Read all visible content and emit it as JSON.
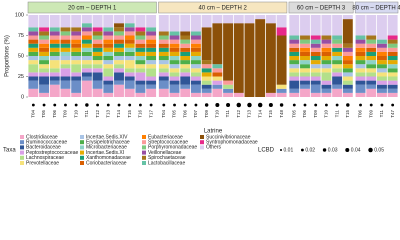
{
  "chart_data": {
    "type": "bar",
    "stacked": true,
    "ylabel": "Proportions (%)",
    "xlabel": "Latrine",
    "legend_title": "Taxa",
    "ylim": [
      0,
      100
    ],
    "yticks": [
      0,
      25,
      50,
      75,
      100
    ],
    "groups": [
      {
        "name": "20 cm – DEPTH 1",
        "color": "#cde8b5",
        "categories": [
          "T04",
          "T05",
          "T06",
          "T09",
          "T10",
          "T11",
          "T12",
          "T13",
          "T14",
          "T15",
          "T16",
          "T17"
        ]
      },
      {
        "name": "40 cm – DEPTH 2",
        "color": "#f6e6c0",
        "categories": [
          "T04",
          "T05",
          "T06",
          "T07",
          "T09",
          "T10",
          "T11",
          "T12",
          "T13",
          "T14",
          "T15",
          "T48"
        ]
      },
      {
        "name": "60 cm – DEPTH 3",
        "color": "#dcdcdc",
        "categories": [
          "T05",
          "T06",
          "T09",
          "T10",
          "T11",
          "T15"
        ]
      },
      {
        "name": "80 cm – DEPTH 4",
        "color": "#d6d9f0",
        "categories": [
          "T06",
          "T09",
          "T11",
          "T47"
        ]
      }
    ],
    "series": [
      {
        "name": "Clostridiaceae",
        "color": "#f4a6c8",
        "values": [
          10,
          5,
          15,
          10,
          5,
          20,
          10,
          5,
          15,
          10,
          5,
          10,
          10,
          5,
          10,
          5,
          5,
          10,
          5,
          5,
          0,
          0,
          5,
          5,
          5,
          10,
          5,
          5,
          10,
          5,
          5,
          10,
          5,
          5
        ]
      },
      {
        "name": "Ruminococcaceae",
        "color": "#6b8ec7",
        "values": [
          10,
          10,
          5,
          10,
          15,
          5,
          10,
          10,
          5,
          10,
          10,
          5,
          10,
          10,
          5,
          10,
          5,
          5,
          5,
          0,
          0,
          0,
          0,
          5,
          5,
          5,
          10,
          5,
          5,
          5,
          10,
          5,
          5,
          5
        ]
      },
      {
        "name": "Bacteroidaceae",
        "color": "#2f5597",
        "values": [
          5,
          10,
          5,
          5,
          5,
          5,
          10,
          5,
          10,
          5,
          5,
          5,
          5,
          5,
          10,
          5,
          5,
          0,
          0,
          0,
          0,
          0,
          0,
          0,
          10,
          5,
          5,
          5,
          10,
          5,
          5,
          5,
          5,
          5
        ]
      },
      {
        "name": "Peptostreptococcaceae",
        "color": "#d9a0e6",
        "values": [
          5,
          5,
          5,
          10,
          5,
          5,
          5,
          5,
          5,
          5,
          10,
          5,
          5,
          5,
          5,
          5,
          0,
          5,
          0,
          0,
          0,
          0,
          0,
          0,
          5,
          5,
          5,
          5,
          5,
          0,
          5,
          5,
          5,
          5
        ]
      },
      {
        "name": "Lachnospiraceae",
        "color": "#b3e08a",
        "values": [
          10,
          5,
          5,
          5,
          10,
          5,
          5,
          10,
          5,
          5,
          5,
          10,
          5,
          5,
          5,
          5,
          5,
          0,
          5,
          0,
          0,
          0,
          0,
          0,
          5,
          5,
          5,
          10,
          5,
          5,
          5,
          5,
          5,
          5
        ]
      },
      {
        "name": "Prevotellaceae",
        "color": "#f6e27a",
        "values": [
          5,
          5,
          10,
          5,
          5,
          5,
          5,
          5,
          5,
          10,
          5,
          5,
          5,
          5,
          5,
          5,
          5,
          5,
          0,
          0,
          0,
          0,
          0,
          5,
          5,
          5,
          5,
          5,
          5,
          5,
          5,
          5,
          5,
          5
        ]
      },
      {
        "name": "Incertae.Sedis.XIV",
        "color": "#a9c4e6",
        "values": [
          5,
          0,
          5,
          5,
          5,
          5,
          0,
          5,
          5,
          5,
          0,
          5,
          5,
          5,
          0,
          5,
          0,
          0,
          0,
          0,
          0,
          0,
          0,
          0,
          5,
          0,
          5,
          5,
          0,
          5,
          5,
          0,
          5,
          0
        ]
      },
      {
        "name": "Erysipelotrichaceae",
        "color": "#4daf4a",
        "values": [
          5,
          5,
          5,
          0,
          5,
          5,
          5,
          5,
          5,
          5,
          5,
          5,
          5,
          5,
          5,
          5,
          0,
          0,
          0,
          0,
          0,
          0,
          0,
          0,
          5,
          5,
          0,
          5,
          5,
          5,
          5,
          5,
          5,
          5
        ]
      },
      {
        "name": "Microbacteriaceae",
        "color": "#8dd3c7",
        "values": [
          0,
          5,
          0,
          5,
          0,
          5,
          0,
          5,
          0,
          5,
          5,
          0,
          0,
          5,
          0,
          5,
          0,
          0,
          0,
          0,
          0,
          0,
          0,
          0,
          0,
          5,
          0,
          0,
          5,
          0,
          0,
          5,
          0,
          5
        ]
      },
      {
        "name": "Incertae.Sedis.XI",
        "color": "#e6ab02",
        "values": [
          5,
          5,
          5,
          5,
          5,
          5,
          5,
          5,
          5,
          5,
          5,
          5,
          5,
          5,
          5,
          5,
          5,
          0,
          0,
          0,
          0,
          0,
          0,
          0,
          5,
          5,
          5,
          5,
          5,
          5,
          5,
          5,
          5,
          5
        ]
      },
      {
        "name": "Xanthomonadaceae",
        "color": "#1b9e77",
        "values": [
          5,
          0,
          5,
          5,
          0,
          5,
          5,
          0,
          5,
          0,
          5,
          5,
          5,
          0,
          5,
          0,
          5,
          0,
          0,
          0,
          0,
          0,
          0,
          0,
          5,
          0,
          5,
          0,
          5,
          0,
          0,
          5,
          0,
          5
        ]
      },
      {
        "name": "Coriobacteriaceae",
        "color": "#d95f02",
        "values": [
          5,
          5,
          0,
          5,
          5,
          0,
          5,
          5,
          5,
          5,
          5,
          5,
          5,
          5,
          5,
          5,
          0,
          5,
          0,
          0,
          0,
          0,
          0,
          0,
          5,
          5,
          5,
          5,
          0,
          5,
          5,
          5,
          5,
          5
        ]
      },
      {
        "name": "Eubacteriaceae",
        "color": "#ff7f00",
        "values": [
          0,
          5,
          5,
          0,
          5,
          5,
          0,
          5,
          0,
          5,
          0,
          5,
          0,
          5,
          0,
          5,
          0,
          0,
          0,
          0,
          0,
          0,
          0,
          0,
          0,
          5,
          0,
          5,
          0,
          5,
          5,
          0,
          5,
          0
        ]
      },
      {
        "name": "Streptococcaceae",
        "color": "#fb9a99",
        "values": [
          5,
          5,
          5,
          5,
          5,
          5,
          5,
          5,
          5,
          5,
          5,
          5,
          5,
          5,
          5,
          5,
          5,
          5,
          5,
          0,
          0,
          0,
          0,
          0,
          5,
          5,
          5,
          5,
          5,
          5,
          5,
          5,
          5,
          5
        ]
      },
      {
        "name": "Porphyromonadaceae",
        "color": "#7fc97f",
        "values": [
          0,
          5,
          0,
          5,
          0,
          0,
          5,
          0,
          5,
          0,
          5,
          0,
          5,
          0,
          5,
          0,
          0,
          0,
          0,
          0,
          0,
          0,
          0,
          0,
          0,
          5,
          0,
          0,
          5,
          0,
          0,
          5,
          0,
          5
        ]
      },
      {
        "name": "Veillonellaceae",
        "color": "#984ea3",
        "values": [
          5,
          0,
          5,
          0,
          5,
          5,
          0,
          5,
          0,
          5,
          0,
          5,
          0,
          5,
          0,
          5,
          0,
          0,
          0,
          0,
          0,
          0,
          0,
          0,
          5,
          0,
          5,
          5,
          0,
          5,
          5,
          0,
          5,
          0
        ]
      },
      {
        "name": "Spirochaetaceae",
        "color": "#a6761d",
        "values": [
          0,
          5,
          0,
          5,
          5,
          0,
          5,
          0,
          5,
          0,
          5,
          0,
          5,
          0,
          5,
          0,
          5,
          0,
          0,
          0,
          0,
          0,
          0,
          0,
          0,
          5,
          0,
          5,
          0,
          5,
          0,
          5,
          0,
          5
        ]
      },
      {
        "name": "Lactobacillaceae",
        "color": "#66c2a5",
        "values": [
          5,
          0,
          5,
          0,
          0,
          5,
          0,
          5,
          0,
          5,
          0,
          5,
          0,
          5,
          0,
          5,
          0,
          5,
          0,
          0,
          0,
          0,
          0,
          0,
          5,
          0,
          5,
          0,
          5,
          0,
          5,
          0,
          5,
          0
        ]
      },
      {
        "name": "Succinivibrionaceae",
        "color": "#8c510a",
        "values": [
          0,
          0,
          0,
          0,
          0,
          0,
          0,
          0,
          5,
          0,
          0,
          0,
          0,
          0,
          5,
          0,
          40,
          50,
          70,
          85,
          90,
          95,
          85,
          60,
          0,
          0,
          0,
          0,
          0,
          30,
          0,
          0,
          0,
          0
        ]
      },
      {
        "name": "Syntrophomonadaceae",
        "color": "#e7298a",
        "values": [
          0,
          5,
          0,
          0,
          0,
          0,
          5,
          0,
          0,
          0,
          5,
          0,
          0,
          0,
          0,
          0,
          0,
          0,
          0,
          0,
          0,
          0,
          0,
          10,
          0,
          0,
          5,
          0,
          0,
          0,
          0,
          0,
          0,
          5
        ]
      },
      {
        "name": "Others",
        "color": "#dccdef",
        "values": [
          15,
          15,
          15,
          15,
          15,
          10,
          15,
          15,
          10,
          10,
          15,
          15,
          20,
          20,
          20,
          20,
          15,
          10,
          10,
          10,
          10,
          5,
          10,
          15,
          25,
          25,
          25,
          25,
          25,
          5,
          25,
          25,
          30,
          25
        ]
      }
    ],
    "lcbd": {
      "name": "LCBD",
      "color": "#000000",
      "ticks": [
        0.01,
        0.02,
        0.03,
        0.04,
        0.05
      ],
      "values": [
        0.02,
        0.02,
        0.02,
        0.02,
        0.02,
        0.03,
        0.02,
        0.02,
        0.02,
        0.02,
        0.02,
        0.02,
        0.02,
        0.02,
        0.02,
        0.02,
        0.03,
        0.04,
        0.04,
        0.05,
        0.05,
        0.05,
        0.04,
        0.03,
        0.02,
        0.02,
        0.02,
        0.02,
        0.02,
        0.03,
        0.02,
        0.02,
        0.02,
        0.02
      ]
    }
  }
}
